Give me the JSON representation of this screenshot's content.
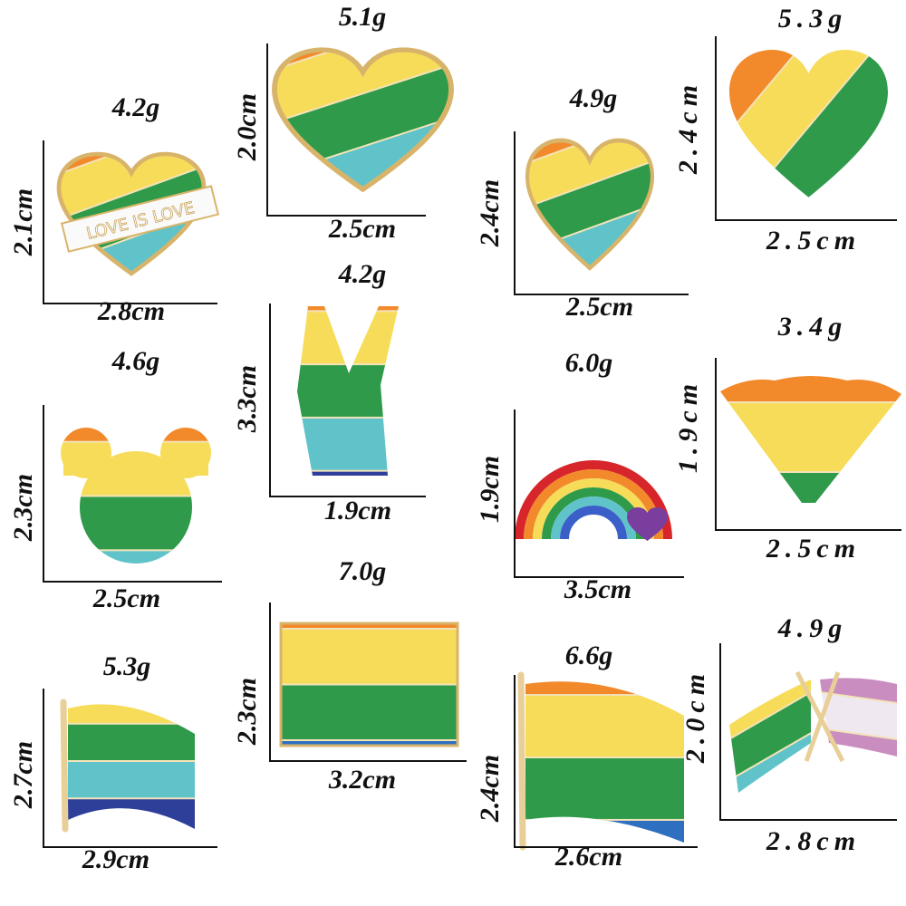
{
  "pins": [
    {
      "weight": "4.2g",
      "height": "2.1cm",
      "width": "2.8cm",
      "banner": "LOVE IS LOVE"
    },
    {
      "weight": "5.1g",
      "height": "2.0cm",
      "width": "2.5cm"
    },
    {
      "weight": "4.9g",
      "height": "2.4cm",
      "width": "2.5cm"
    },
    {
      "weight": "5.3g",
      "height": "2.4cm",
      "width": "2.5cm"
    },
    {
      "weight": "4.2g",
      "height": "3.3cm",
      "width": "1.9cm"
    },
    {
      "weight": "4.6g",
      "height": "2.3cm",
      "width": "2.5cm"
    },
    {
      "weight": "6.0g",
      "height": "1.9cm",
      "width": "3.5cm"
    },
    {
      "weight": "3.4g",
      "height": "1.9cm",
      "width": "2.5cm"
    },
    {
      "weight": "5.3g",
      "height": "2.7cm",
      "width": "2.9cm"
    },
    {
      "weight": "7.0g",
      "height": "2.3cm",
      "width": "3.2cm"
    },
    {
      "weight": "6.6g",
      "height": "2.4cm",
      "width": "2.6cm"
    },
    {
      "weight": "4.9g",
      "height": "2.0cm",
      "width": "2.8cm"
    }
  ]
}
